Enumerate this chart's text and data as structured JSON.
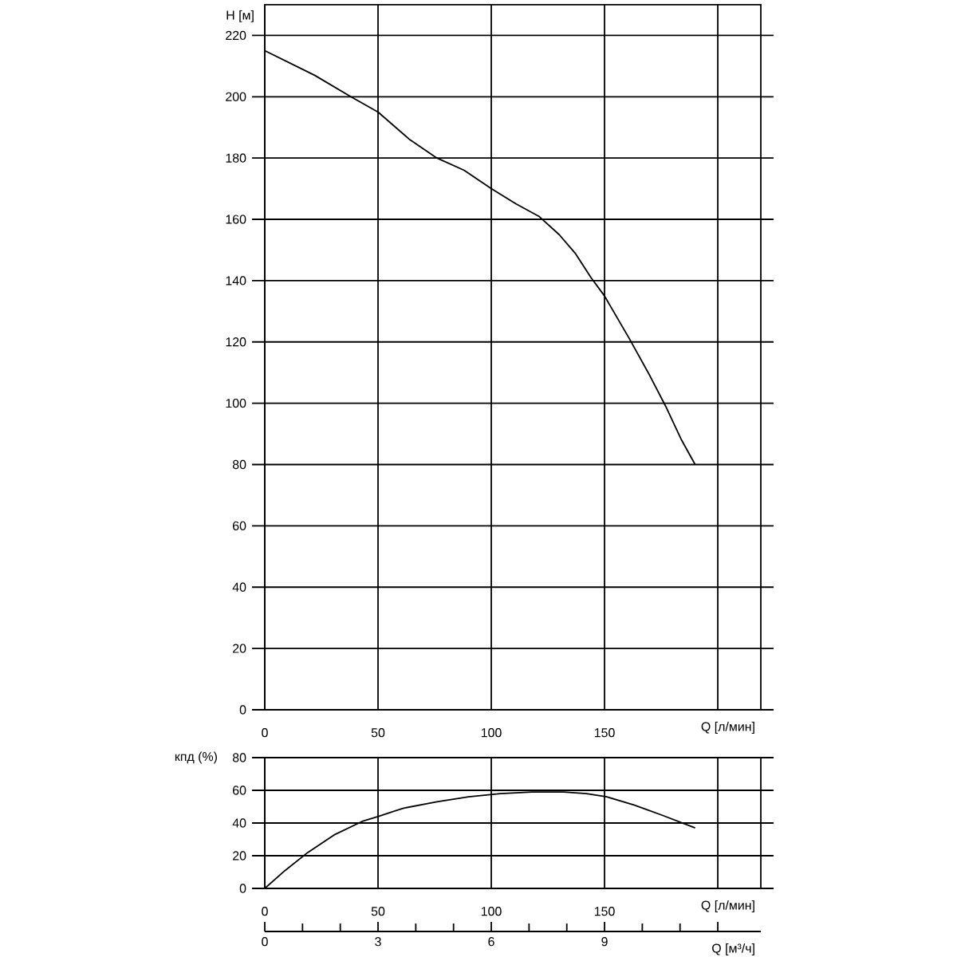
{
  "chart_data": [
    {
      "type": "line",
      "ylabel": "H [м]",
      "xlabel": "Q [л/мин]",
      "color": "#000000",
      "marker": "none",
      "line_style": "solid",
      "grid": true,
      "x": [
        0,
        22,
        38,
        50,
        64,
        76,
        88,
        100,
        111,
        121,
        130,
        137,
        144,
        150,
        161,
        170,
        177,
        184,
        190
      ],
      "values": [
        215,
        207,
        200,
        195,
        186,
        180,
        176,
        170,
        165,
        161,
        155,
        149,
        141,
        135,
        121,
        109,
        99,
        88,
        80
      ],
      "xlim": [
        0,
        219
      ],
      "ylim": [
        0,
        230
      ],
      "xticks": [
        0,
        50,
        100,
        150,
        {
          "value": 200,
          "label": null
        }
      ],
      "yticks": [
        0,
        20,
        40,
        60,
        80,
        100,
        120,
        140,
        160,
        180,
        200,
        220
      ]
    },
    {
      "type": "line",
      "ylabel": "кпд (%)",
      "xlabel": "Q [л/мин]",
      "color": "#000000",
      "marker": "none",
      "line_style": "solid",
      "grid": true,
      "x": [
        0,
        9,
        19,
        31,
        43,
        50,
        61,
        76,
        90,
        104,
        118,
        132,
        142,
        151,
        163,
        175,
        190
      ],
      "values": [
        0,
        11,
        22,
        33,
        41,
        44,
        49,
        53,
        56,
        58,
        59,
        59,
        58,
        56,
        51,
        45,
        37
      ],
      "xlim": [
        0,
        219
      ],
      "ylim": [
        0,
        80
      ],
      "xticks": [
        0,
        50,
        100,
        150,
        {
          "value": 200,
          "label": null
        }
      ],
      "yticks": [
        0,
        20,
        40,
        60,
        80
      ],
      "x2lim": [
        0,
        13.14
      ],
      "x2label": "Q [м³/ч]",
      "x2ticks": [
        0,
        3,
        6,
        9,
        {
          "value": 12,
          "label": null
        }
      ]
    }
  ]
}
